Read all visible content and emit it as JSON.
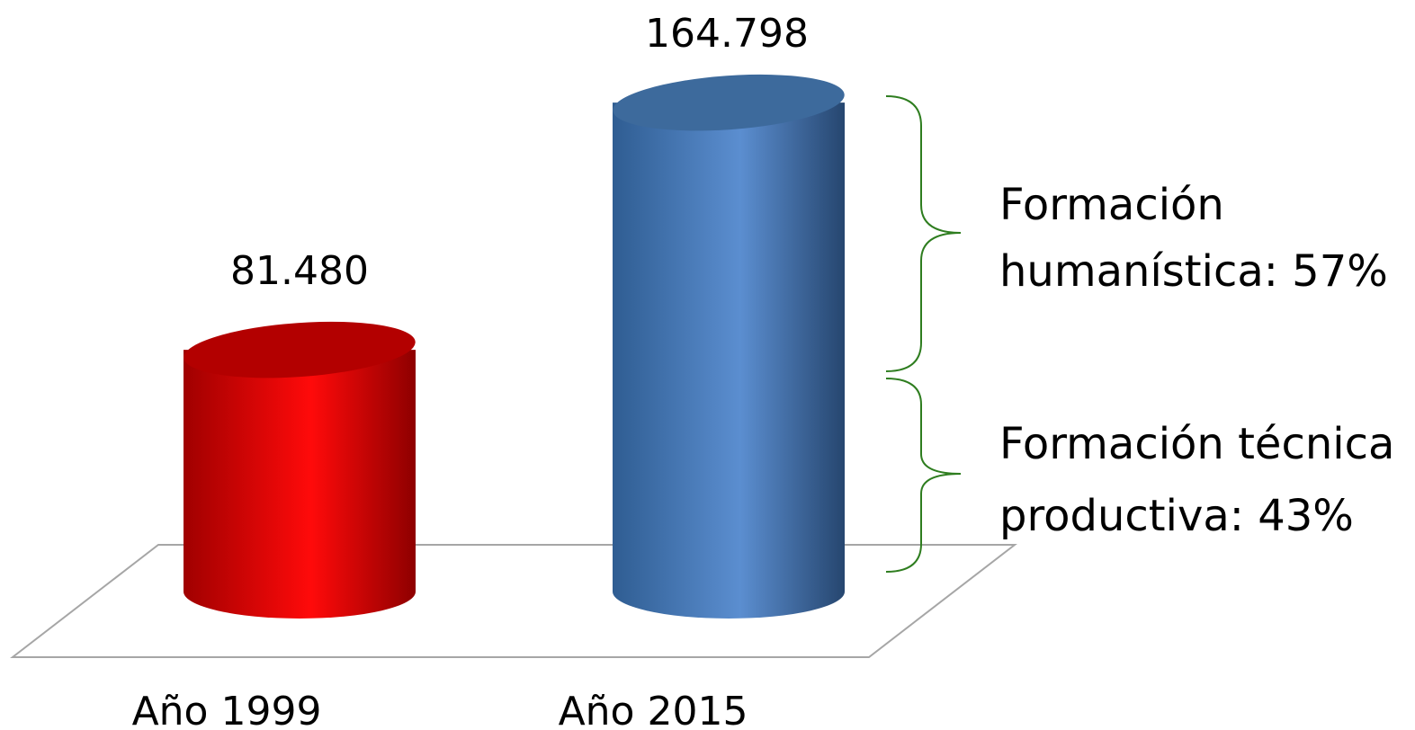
{
  "chart_data": {
    "type": "bar",
    "categories": [
      "Año 1999",
      "Año 2015"
    ],
    "values": [
      81480,
      164798
    ],
    "value_labels": [
      "81.480",
      "164.798"
    ],
    "colors": [
      "#ff0000",
      "#4f81bd"
    ],
    "grid": false,
    "legend": "none",
    "annotations": [
      {
        "lines": [
          "Formación",
          "humanística: 57%"
        ],
        "share": 0.57
      },
      {
        "lines": [
          "Formación técnica",
          "productiva: 43%"
        ],
        "share": 0.43
      }
    ],
    "bracket_color": "#2e7d1f"
  }
}
